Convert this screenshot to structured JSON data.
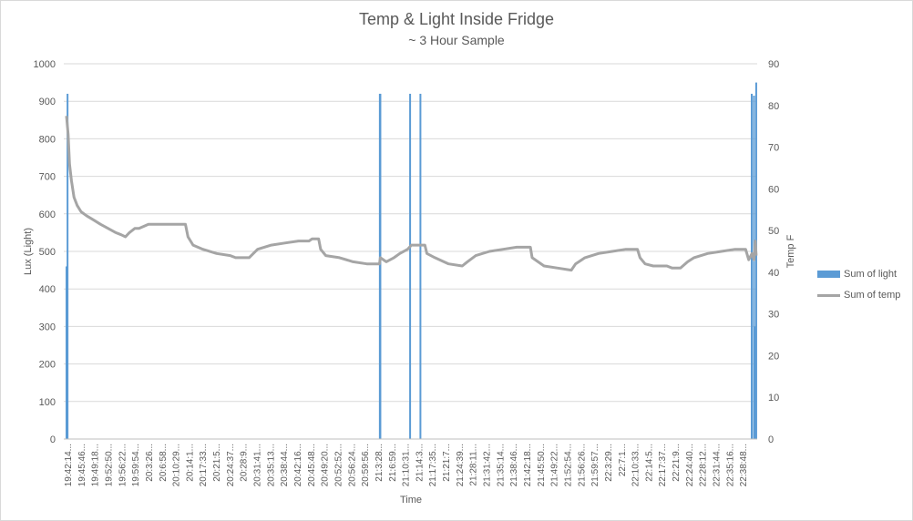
{
  "chart_data": {
    "type": "bar-line combo",
    "title": "Temp & Light Inside Fridge",
    "subtitle": "~ 3 Hour Sample",
    "xlabel": "Time",
    "ylabel_left": "Lux (Light)",
    "ylabel_right": "Temp F",
    "ylim_left": [
      0,
      1000
    ],
    "ylim_right": [
      0,
      90
    ],
    "left_ticks": [
      "0",
      "100",
      "200",
      "300",
      "400",
      "500",
      "600",
      "700",
      "800",
      "900",
      "1000"
    ],
    "right_ticks": [
      "0",
      "10",
      "20",
      "30",
      "40",
      "50",
      "60",
      "70",
      "80",
      "90"
    ],
    "grid": "horizontal",
    "legend_position": "right",
    "x_tick_labels": [
      "19:42:14...",
      "19:45:46...",
      "19:49:18...",
      "19:52:50...",
      "19:56:22...",
      "19:59:54...",
      "20:3:26...",
      "20:6:58...",
      "20:10:29...",
      "20:14:1...",
      "20:17:33...",
      "20:21:5...",
      "20:24:37...",
      "20:28:9...",
      "20:31:41...",
      "20:35:13...",
      "20:38:44...",
      "20:42:16...",
      "20:45:48...",
      "20:49:20...",
      "20:52:52...",
      "20:56:24...",
      "20:59:56...",
      "21:3:28...",
      "21:6:59...",
      "21:10:31...",
      "21:14:3...",
      "21:17:35...",
      "21:21:7...",
      "21:24:39...",
      "21:28:11...",
      "21:31:42...",
      "21:35:14...",
      "21:38:46...",
      "21:42:18...",
      "21:45:50...",
      "21:49:22...",
      "21:52:54...",
      "21:56:26...",
      "21:59:57...",
      "22:3:29...",
      "22:7:1...",
      "22:10:33...",
      "22:14:5...",
      "22:17:37...",
      "22:21:9...",
      "22:24:40...",
      "22:28:12...",
      "22:31:44...",
      "22:35:16...",
      "22:38:48..."
    ],
    "series": [
      {
        "name": "Sum of light",
        "kind": "bar",
        "axis": "left",
        "color": "#5b9bd5",
        "points": [
          {
            "x": "19:42:14",
            "y": 460
          },
          {
            "x": "19:42:30",
            "y": 920
          },
          {
            "x": "21:3:20",
            "y": 920
          },
          {
            "x": "21:3:28",
            "y": 920
          },
          {
            "x": "21:11:10",
            "y": 920
          },
          {
            "x": "21:13:50",
            "y": 920
          },
          {
            "x": "22:39:35",
            "y": 920
          },
          {
            "x": "22:40:10",
            "y": 915
          },
          {
            "x": "22:40:30",
            "y": 300
          },
          {
            "x": "22:40:45",
            "y": 950
          }
        ]
      },
      {
        "name": "Sum of temp",
        "kind": "line",
        "axis": "right",
        "color": "#a5a5a5",
        "points": [
          {
            "x": "19:42:14",
            "y": 77.5
          },
          {
            "x": "19:42:40",
            "y": 73
          },
          {
            "x": "19:43:00",
            "y": 66
          },
          {
            "x": "19:43:30",
            "y": 62
          },
          {
            "x": "19:44:10",
            "y": 58
          },
          {
            "x": "19:45:00",
            "y": 56
          },
          {
            "x": "19:46:00",
            "y": 54.5
          },
          {
            "x": "19:47:30",
            "y": 53.5
          },
          {
            "x": "19:49:18",
            "y": 52.5
          },
          {
            "x": "19:51:00",
            "y": 51.5
          },
          {
            "x": "19:53:00",
            "y": 50.5
          },
          {
            "x": "19:55:00",
            "y": 49.5
          },
          {
            "x": "19:56:22",
            "y": 49
          },
          {
            "x": "19:57:30",
            "y": 48.5
          },
          {
            "x": "19:58:30",
            "y": 49.5
          },
          {
            "x": "19:59:54",
            "y": 50.5
          },
          {
            "x": "20:1:00",
            "y": 50.5
          },
          {
            "x": "20:3:26",
            "y": 51.5
          },
          {
            "x": "20:13:00",
            "y": 51.5
          },
          {
            "x": "20:13:40",
            "y": 48.5
          },
          {
            "x": "20:15:00",
            "y": 46.5
          },
          {
            "x": "20:17:33",
            "y": 45.5
          },
          {
            "x": "20:21:5",
            "y": 44.5
          },
          {
            "x": "20:24:37",
            "y": 44
          },
          {
            "x": "20:26:00",
            "y": 43.5
          },
          {
            "x": "20:29:30",
            "y": 43.5
          },
          {
            "x": "20:31:41",
            "y": 45.5
          },
          {
            "x": "20:35:13",
            "y": 46.5
          },
          {
            "x": "20:38:44",
            "y": 47
          },
          {
            "x": "20:42:16",
            "y": 47.5
          },
          {
            "x": "20:45:00",
            "y": 47.5
          },
          {
            "x": "20:45:48",
            "y": 48
          },
          {
            "x": "20:47:30",
            "y": 48
          },
          {
            "x": "20:48:00",
            "y": 45.5
          },
          {
            "x": "20:49:20",
            "y": 44
          },
          {
            "x": "20:52:52",
            "y": 43.5
          },
          {
            "x": "20:56:24",
            "y": 42.5
          },
          {
            "x": "20:59:56",
            "y": 42
          },
          {
            "x": "21:3:15",
            "y": 42
          },
          {
            "x": "21:3:28",
            "y": 43.5
          },
          {
            "x": "21:5:00",
            "y": 42.5
          },
          {
            "x": "21:6:59",
            "y": 43.5
          },
          {
            "x": "21:8:30",
            "y": 44.5
          },
          {
            "x": "21:10:31",
            "y": 45.5
          },
          {
            "x": "21:11:30",
            "y": 46.5
          },
          {
            "x": "21:14:3",
            "y": 46.5
          },
          {
            "x": "21:15:00",
            "y": 46.5
          },
          {
            "x": "21:15:30",
            "y": 44.5
          },
          {
            "x": "21:17:35",
            "y": 43.5
          },
          {
            "x": "21:21:7",
            "y": 42
          },
          {
            "x": "21:24:39",
            "y": 41.5
          },
          {
            "x": "21:26:00",
            "y": 42.5
          },
          {
            "x": "21:28:11",
            "y": 44
          },
          {
            "x": "21:31:42",
            "y": 45
          },
          {
            "x": "21:35:14",
            "y": 45.5
          },
          {
            "x": "21:38:46",
            "y": 46
          },
          {
            "x": "21:42:18",
            "y": 46
          },
          {
            "x": "21:42:45",
            "y": 43.5
          },
          {
            "x": "21:45:50",
            "y": 41.5
          },
          {
            "x": "21:49:22",
            "y": 41
          },
          {
            "x": "21:52:54",
            "y": 40.5
          },
          {
            "x": "21:54:00",
            "y": 42
          },
          {
            "x": "21:56:26",
            "y": 43.5
          },
          {
            "x": "21:59:57",
            "y": 44.5
          },
          {
            "x": "22:3:29",
            "y": 45
          },
          {
            "x": "22:7:1",
            "y": 45.5
          },
          {
            "x": "22:10:00",
            "y": 45.5
          },
          {
            "x": "22:10:40",
            "y": 43.5
          },
          {
            "x": "22:12:00",
            "y": 42
          },
          {
            "x": "22:14:5",
            "y": 41.5
          },
          {
            "x": "22:17:37",
            "y": 41.5
          },
          {
            "x": "22:19:00",
            "y": 41
          },
          {
            "x": "22:21:9",
            "y": 41
          },
          {
            "x": "22:23:00",
            "y": 42.5
          },
          {
            "x": "22:24:40",
            "y": 43.5
          },
          {
            "x": "22:28:12",
            "y": 44.5
          },
          {
            "x": "22:31:44",
            "y": 45
          },
          {
            "x": "22:35:16",
            "y": 45.5
          },
          {
            "x": "22:38:00",
            "y": 45.5
          },
          {
            "x": "22:38:48",
            "y": 43
          },
          {
            "x": "22:39:40",
            "y": 44.5
          },
          {
            "x": "22:40:10",
            "y": 43
          },
          {
            "x": "22:40:30",
            "y": 47.5
          },
          {
            "x": "22:40:45",
            "y": 44
          }
        ]
      }
    ]
  }
}
